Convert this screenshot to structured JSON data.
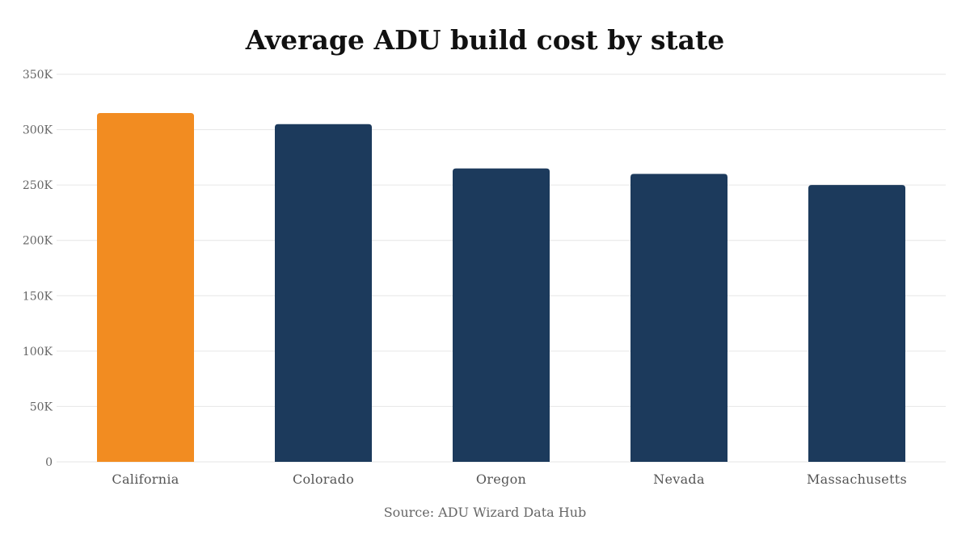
{
  "chart_data": {
    "type": "bar",
    "title": "Average ADU build cost by state",
    "source": "Source: ADU Wizard Data Hub",
    "categories": [
      "California",
      "Colorado",
      "Oregon",
      "Nevada",
      "Massachusetts"
    ],
    "values": [
      315000,
      305000,
      265000,
      260000,
      250000
    ],
    "bar_colors": [
      "#F28C21",
      "#1C3A5C",
      "#1C3A5C",
      "#1C3A5C",
      "#1C3A5C"
    ],
    "ylim": [
      0,
      350000
    ],
    "yticks": [
      0,
      50000,
      100000,
      150000,
      200000,
      250000,
      300000,
      350000
    ],
    "ytick_labels": [
      "0",
      "50K",
      "100K",
      "150K",
      "200K",
      "250K",
      "300K",
      "350K"
    ],
    "xlabel": "",
    "ylabel": "",
    "grid": true,
    "legend": "none"
  },
  "colors": {
    "highlight": "#F28C21",
    "bar": "#1C3A5C",
    "grid": "#E6E6E6"
  }
}
